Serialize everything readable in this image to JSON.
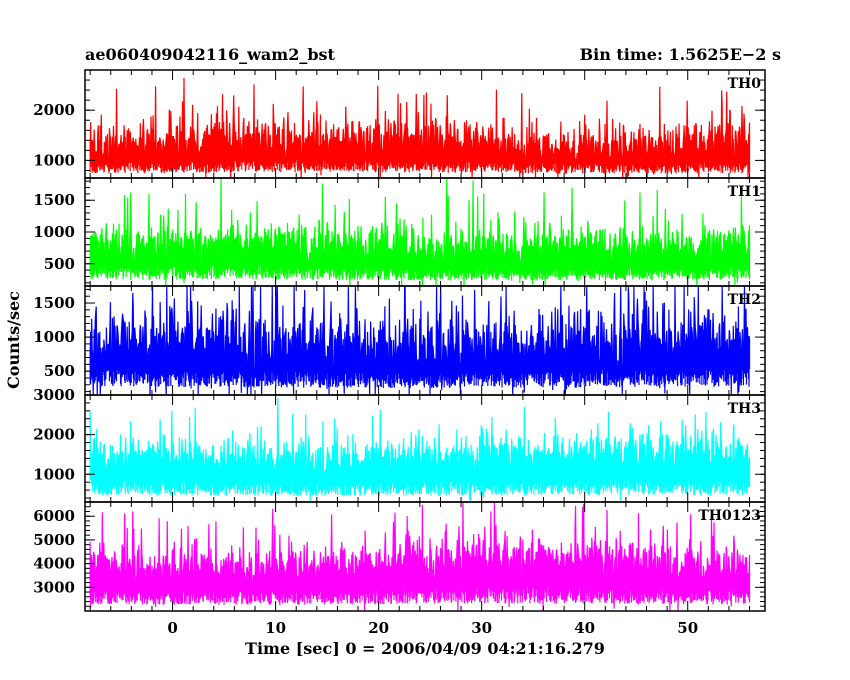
{
  "chart_data": {
    "type": "line",
    "title_left": "ae060409042116_wam2_bst",
    "title_right": "Bin time: 1.5625E−2 s",
    "xlabel": "Time [sec] 0 = 2006/04/09 04:21:16.279",
    "ylabel": "Counts/sec",
    "xlim": [
      -8.5,
      57.5
    ],
    "data_xrange": [
      -8,
      56
    ],
    "xticks": [
      0,
      10,
      20,
      30,
      40,
      50
    ],
    "xtick_labels": [
      "0",
      "10",
      "20",
      "30",
      "40",
      "50"
    ],
    "panels": [
      {
        "name": "TH0",
        "color": "#ff0000",
        "ylim": [
          650,
          2800
        ],
        "yticks": [
          1000,
          2000
        ],
        "ytick_labels": [
          "1000",
          "2000"
        ],
        "base": 1320,
        "amp": 420,
        "fill_to": 650
      },
      {
        "name": "TH1",
        "color": "#00ff00",
        "ylim": [
          150,
          1850
        ],
        "yticks": [
          500,
          1000,
          1500
        ],
        "ytick_labels": [
          "500",
          "1000",
          "1500"
        ],
        "base": 760,
        "amp": 330,
        "fill_to": 150
      },
      {
        "name": "TH2",
        "color": "#0000ff",
        "ylim": [
          150,
          1750
        ],
        "yticks": [
          500,
          1000,
          1500
        ],
        "ytick_labels": [
          "500",
          "1000",
          "1500"
        ],
        "base": 880,
        "amp": 470,
        "fill_to": 150
      },
      {
        "name": "TH3",
        "color": "#00ffff",
        "ylim": [
          300,
          3000
        ],
        "yticks": [
          1000,
          2000,
          3000
        ],
        "ytick_labels": [
          "1000",
          "2000",
          "3000"
        ],
        "base": 1380,
        "amp": 480,
        "fill_to": 300
      },
      {
        "name": "TH0123",
        "color": "#ff00ff",
        "ylim": [
          2000,
          6600
        ],
        "yticks": [
          3000,
          4000,
          5000,
          6000
        ],
        "ytick_labels": [
          "3000",
          "4000",
          "5000",
          "6000"
        ],
        "base": 3900,
        "amp": 900,
        "fill_to": 2000
      }
    ]
  }
}
